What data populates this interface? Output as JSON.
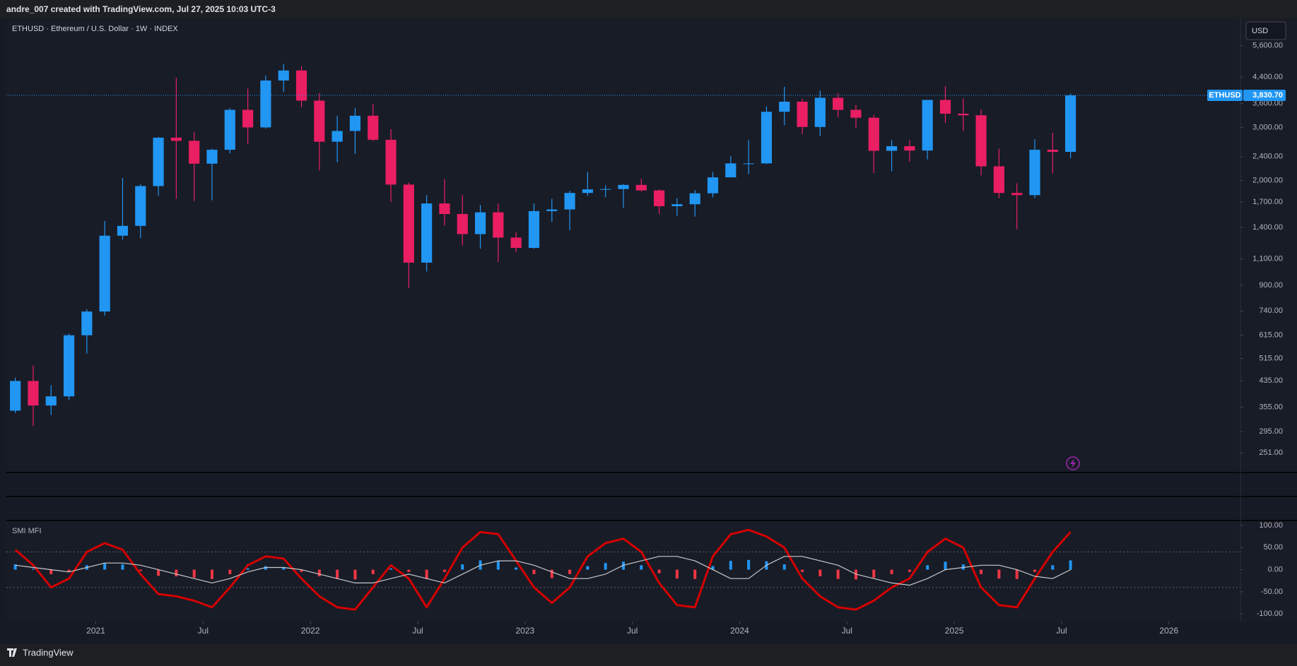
{
  "header": {
    "text": "andre_007 created with TradingView.com, Jul 27, 2025 10:03 UTC-3"
  },
  "footer": {
    "brand": "TradingView"
  },
  "chart_data": [
    {
      "type": "candlestick",
      "title": "ETHUSD · Ethereum / U.S. Dollar · 1W · INDEX",
      "currency": "USD",
      "log_scale": true,
      "grid": false,
      "colors": {
        "up": "#2196f3",
        "down": "#e91e63"
      },
      "x": [
        "2020-08",
        "2020-09",
        "2020-10",
        "2020-11",
        "2020-12",
        "2021-01",
        "2021-02",
        "2021-03",
        "2021-04",
        "2021-05",
        "2021-06",
        "2021-07",
        "2021-08",
        "2021-09",
        "2021-10",
        "2021-11",
        "2021-12",
        "2022-01",
        "2022-02",
        "2022-03",
        "2022-04",
        "2022-05",
        "2022-06",
        "2022-07",
        "2022-08",
        "2022-09",
        "2022-10",
        "2022-11",
        "2022-12",
        "2023-01",
        "2023-02",
        "2023-03",
        "2023-04",
        "2023-05",
        "2023-06",
        "2023-07",
        "2023-08",
        "2023-09",
        "2023-10",
        "2023-11",
        "2023-12",
        "2024-01",
        "2024-02",
        "2024-03",
        "2024-04",
        "2024-05",
        "2024-06",
        "2024-07",
        "2024-08",
        "2024-09",
        "2024-10",
        "2024-11",
        "2024-12",
        "2025-01",
        "2025-02",
        "2025-03",
        "2025-04",
        "2025-05",
        "2025-06",
        "2025-07"
      ],
      "open": [
        346,
        434,
        360,
        386,
        615,
        737,
        1314,
        1416,
        1918,
        2774,
        2708,
        2275,
        2530,
        3430,
        3000,
        4290,
        4630,
        3680,
        2690,
        2920,
        3280,
        2730,
        1940,
        1070,
        1680,
        1550,
        1330,
        1570,
        1295,
        1197,
        1585,
        1605,
        1820,
        1870,
        1875,
        1935,
        1856,
        1645,
        1670,
        1815,
        2050,
        2280,
        2280,
        3380,
        3650,
        3010,
        3760,
        3430,
        3230,
        2510,
        2600,
        2515,
        3700,
        3330,
        3290,
        2230,
        1820,
        1790,
        2530,
        2490
      ],
      "high": [
        445,
        488,
        420,
        623,
        750,
        1470,
        2040,
        1945,
        2790,
        4380,
        2890,
        2550,
        3470,
        4030,
        4460,
        4870,
        4780,
        3900,
        3280,
        3480,
        3580,
        2960,
        1970,
        1790,
        2020,
        1790,
        1660,
        1680,
        1350,
        1680,
        1740,
        1850,
        2140,
        1930,
        1950,
        2030,
        1870,
        1750,
        1860,
        2135,
        2410,
        2720,
        3520,
        4090,
        3730,
        3975,
        3890,
        3560,
        3300,
        2730,
        2720,
        3680,
        4110,
        3740,
        3440,
        2550,
        1960,
        2740,
        2880,
        3880
      ],
      "low": [
        340,
        308,
        335,
        375,
        535,
        715,
        1275,
        1290,
        1780,
        1740,
        1710,
        1720,
        2460,
        2650,
        2970,
        3930,
        3500,
        2160,
        2300,
        2450,
        2700,
        1700,
        880,
        1000,
        1420,
        1220,
        1190,
        1075,
        1160,
        1190,
        1460,
        1370,
        1780,
        1760,
        1625,
        1840,
        1550,
        1530,
        1520,
        1760,
        2050,
        2100,
        2270,
        3050,
        2850,
        2810,
        3240,
        2990,
        2120,
        2150,
        2310,
        2350,
        3100,
        2920,
        2080,
        1750,
        1380,
        1750,
        2110,
        2370
      ],
      "close": [
        434,
        360,
        386,
        615,
        737,
        1314,
        1416,
        1918,
        2774,
        2708,
        2275,
        2530,
        3430,
        3000,
        4290,
        4630,
        3680,
        2690,
        2920,
        3280,
        2730,
        1940,
        1070,
        1680,
        1550,
        1330,
        1570,
        1295,
        1197,
        1585,
        1605,
        1820,
        1870,
        1875,
        1935,
        1856,
        1645,
        1670,
        1815,
        2050,
        2280,
        2280,
        3380,
        3650,
        3010,
        3760,
        3430,
        3230,
        2510,
        2600,
        2515,
        3700,
        3330,
        3290,
        2230,
        1820,
        1790,
        2530,
        2490,
        3830.7
      ],
      "last_price": {
        "symbol": "ETHUSD",
        "value": 3830.7,
        "label": "3,830.70"
      },
      "xlim": [
        "2020-08",
        "2026-05"
      ],
      "xticks": [
        {
          "value": "2021-01",
          "label": "2021"
        },
        {
          "value": "2021-07",
          "label": "Jul"
        },
        {
          "value": "2022-01",
          "label": "2022"
        },
        {
          "value": "2022-07",
          "label": "Jul"
        },
        {
          "value": "2023-01",
          "label": "2023"
        },
        {
          "value": "2023-07",
          "label": "Jul"
        },
        {
          "value": "2024-01",
          "label": "2024"
        },
        {
          "value": "2024-07",
          "label": "Jul"
        },
        {
          "value": "2025-01",
          "label": "2025"
        },
        {
          "value": "2025-07",
          "label": "Jul"
        },
        {
          "value": "2026-01",
          "label": "2026"
        }
      ],
      "ylim": [
        216,
        6890
      ],
      "yticks": [
        {
          "value": 251,
          "label": "251.00"
        },
        {
          "value": 295,
          "label": "295.00"
        },
        {
          "value": 355,
          "label": "355.00"
        },
        {
          "value": 435,
          "label": "435.00"
        },
        {
          "value": 515,
          "label": "515.00"
        },
        {
          "value": 615,
          "label": "615.00"
        },
        {
          "value": 740,
          "label": "740.00"
        },
        {
          "value": 900,
          "label": "900.00"
        },
        {
          "value": 1100,
          "label": "1,100.00"
        },
        {
          "value": 1400,
          "label": "1,400.00"
        },
        {
          "value": 1700,
          "label": "1,700.00"
        },
        {
          "value": 2000,
          "label": "2,000.00"
        },
        {
          "value": 2400,
          "label": "2,400.00"
        },
        {
          "value": 3000,
          "label": "3,000.00"
        },
        {
          "value": 3600,
          "label": "3,600.00"
        },
        {
          "value": 4400,
          "label": "4,400.00"
        },
        {
          "value": 5600,
          "label": "5,600.00"
        }
      ]
    },
    {
      "type": "oscillator",
      "title": "SMI MFI",
      "series": [
        {
          "color": "#d50000",
          "values": [
            45,
            10,
            -40,
            -20,
            40,
            60,
            45,
            -10,
            -55,
            -60,
            -70,
            -85,
            -40,
            10,
            30,
            25,
            -20,
            -60,
            -85,
            -90,
            -40,
            10,
            -20,
            -85,
            -20,
            50,
            85,
            80,
            20,
            -40,
            -75,
            -40,
            30,
            60,
            70,
            40,
            -30,
            -80,
            -85,
            30,
            80,
            90,
            75,
            50,
            -20,
            -60,
            -85,
            -90,
            -70,
            -40,
            -20,
            40,
            70,
            50,
            -40,
            -80,
            -85,
            -20,
            40,
            85
          ]
        },
        {
          "color": "#c8c8c8",
          "values": [
            10,
            5,
            0,
            -5,
            5,
            15,
            15,
            10,
            0,
            -10,
            -20,
            -30,
            -20,
            -5,
            5,
            5,
            0,
            -10,
            -20,
            -30,
            -30,
            -20,
            -10,
            -20,
            -30,
            -10,
            10,
            20,
            20,
            10,
            -5,
            -20,
            -20,
            -10,
            10,
            20,
            30,
            30,
            20,
            0,
            -20,
            -20,
            10,
            30,
            30,
            20,
            10,
            -10,
            -20,
            -30,
            -35,
            -20,
            0,
            5,
            10,
            10,
            0,
            -15,
            -20,
            0
          ]
        }
      ],
      "histogram": {
        "colors": {
          "up": "#2196f3",
          "down": "#f23645"
        },
        "values": [
          12,
          2,
          -10,
          -5,
          10,
          15,
          12,
          -3,
          -14,
          -15,
          -18,
          -21,
          -10,
          3,
          8,
          6,
          -5,
          -15,
          -21,
          -22,
          -10,
          3,
          -5,
          -21,
          -5,
          12,
          21,
          20,
          5,
          -10,
          -19,
          -10,
          8,
          15,
          18,
          10,
          -8,
          -20,
          -21,
          8,
          20,
          22,
          19,
          12,
          -5,
          -15,
          -21,
          -22,
          -18,
          -10,
          -5,
          10,
          18,
          12,
          -10,
          -20,
          -21,
          -5,
          10,
          21
        ]
      },
      "levels": [
        40,
        -40
      ],
      "ylim": [
        -117,
        111
      ],
      "yticks": [
        {
          "value": 100,
          "label": "100.00"
        },
        {
          "value": 50,
          "label": "50.00"
        },
        {
          "value": 0,
          "label": "0.00"
        },
        {
          "value": -50,
          "label": "-50.00"
        },
        {
          "value": -100,
          "label": "-100.00"
        }
      ]
    }
  ]
}
